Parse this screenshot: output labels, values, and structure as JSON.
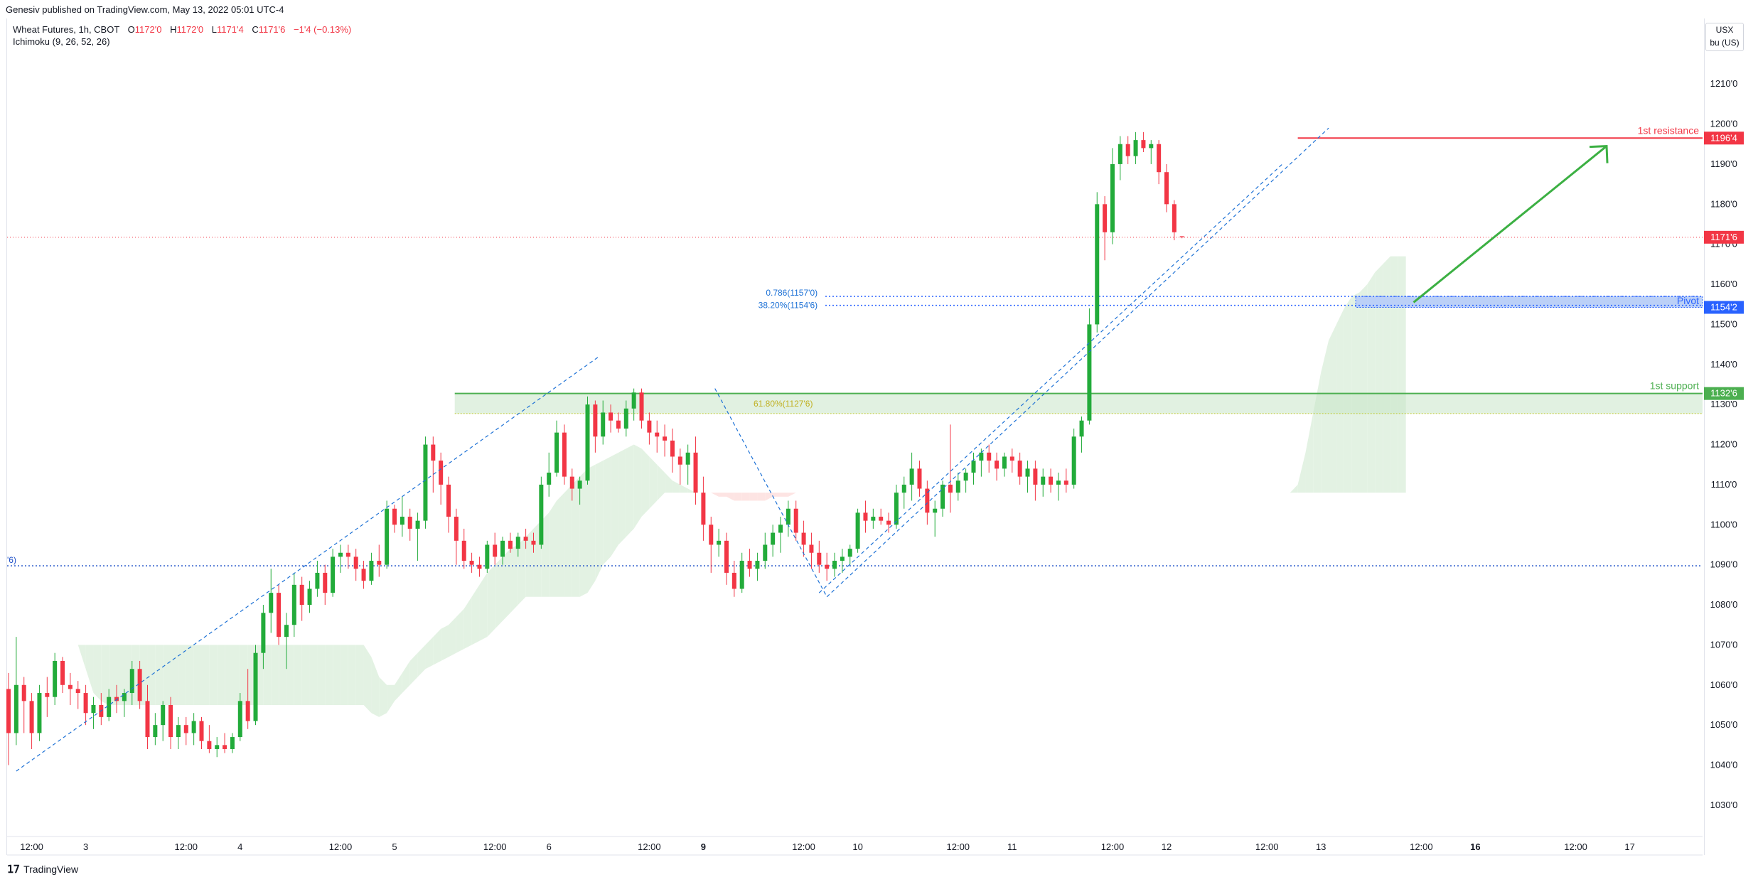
{
  "publisher_line": "Genesiv published on TradingView.com, May 13, 2022 05:01 UTC-4",
  "legend": {
    "symbol": "Wheat Futures, 1h, CBOT",
    "o_label": "O",
    "o_value": "1172'0",
    "h_label": "H",
    "h_value": "1172'0",
    "l_label": "L",
    "l_value": "1171'4",
    "c_label": "C",
    "c_value": "1171'6",
    "change": "−1'4 (−0.13%)",
    "indicator": "Ichimoku (9, 26, 52, 26)"
  },
  "currency": {
    "line1": "USX",
    "line2": "bu (US)"
  },
  "branding": "TradingView",
  "colors": {
    "up": "#22ab3a",
    "down": "#f23645",
    "resistance": "#f23645",
    "support": "#4caf50",
    "pivot": "#2962ff",
    "fib": "#1e72d6",
    "cloud_bull": "#e3f2e3",
    "cloud_bear": "#fde4e3"
  },
  "chart_data": {
    "type": "candlestick",
    "timeframe": "1h",
    "ylim": [
      1022,
      1226
    ],
    "y_ticks": [
      "1030'0",
      "1040'0",
      "1050'0",
      "1060'0",
      "1070'0",
      "1080'0",
      "1090'0",
      "1100'0",
      "1110'0",
      "1120'0",
      "1130'0",
      "1140'0",
      "1150'0",
      "1160'0",
      "1170'0",
      "1180'0",
      "1190'0",
      "1200'0",
      "1210'0"
    ],
    "y_tick_values": [
      1030,
      1040,
      1050,
      1060,
      1070,
      1080,
      1090,
      1100,
      1110,
      1120,
      1130,
      1140,
      1150,
      1160,
      1170,
      1180,
      1190,
      1200,
      1210
    ],
    "x_labels": [
      {
        "t": "12:00",
        "i": 3,
        "bold": false
      },
      {
        "t": "3",
        "i": 10,
        "bold": false
      },
      {
        "t": "12:00",
        "i": 23,
        "bold": false
      },
      {
        "t": "4",
        "i": 30,
        "bold": false
      },
      {
        "t": "12:00",
        "i": 43,
        "bold": false
      },
      {
        "t": "5",
        "i": 50,
        "bold": false
      },
      {
        "t": "12:00",
        "i": 63,
        "bold": false
      },
      {
        "t": "6",
        "i": 70,
        "bold": false
      },
      {
        "t": "12:00",
        "i": 83,
        "bold": false
      },
      {
        "t": "9",
        "i": 90,
        "bold": true
      },
      {
        "t": "12:00",
        "i": 103,
        "bold": false
      },
      {
        "t": "10",
        "i": 110,
        "bold": false
      },
      {
        "t": "12:00",
        "i": 123,
        "bold": false
      },
      {
        "t": "11",
        "i": 130,
        "bold": false
      },
      {
        "t": "12:00",
        "i": 143,
        "bold": false
      },
      {
        "t": "12",
        "i": 150,
        "bold": false
      },
      {
        "t": "12:00",
        "i": 163,
        "bold": false
      },
      {
        "t": "13",
        "i": 170,
        "bold": false
      },
      {
        "t": "12:00",
        "i": 183,
        "bold": false
      },
      {
        "t": "16",
        "i": 190,
        "bold": true
      },
      {
        "t": "12:00",
        "i": 203,
        "bold": false
      },
      {
        "t": "17",
        "i": 210,
        "bold": false
      }
    ],
    "candles": [
      [
        1059,
        1063,
        1040,
        1048
      ],
      [
        1048,
        1072,
        1045,
        1060
      ],
      [
        1060,
        1062,
        1048,
        1056
      ],
      [
        1056,
        1058,
        1044,
        1048
      ],
      [
        1048,
        1060,
        1046,
        1058
      ],
      [
        1058,
        1062,
        1052,
        1057
      ],
      [
        1057,
        1068,
        1055,
        1066
      ],
      [
        1066,
        1067,
        1058,
        1060
      ],
      [
        1060,
        1063,
        1055,
        1059
      ],
      [
        1059,
        1061,
        1054,
        1058
      ],
      [
        1058,
        1060,
        1050,
        1053
      ],
      [
        1053,
        1057,
        1049,
        1055
      ],
      [
        1055,
        1058,
        1050,
        1052
      ],
      [
        1052,
        1059,
        1051,
        1057
      ],
      [
        1057,
        1060,
        1053,
        1056
      ],
      [
        1056,
        1059,
        1052,
        1058
      ],
      [
        1058,
        1066,
        1055,
        1064
      ],
      [
        1064,
        1066,
        1054,
        1056
      ],
      [
        1056,
        1060,
        1044,
        1047
      ],
      [
        1047,
        1053,
        1045,
        1050
      ],
      [
        1050,
        1056,
        1046,
        1055
      ],
      [
        1055,
        1057,
        1044,
        1047
      ],
      [
        1047,
        1052,
        1044,
        1050
      ],
      [
        1050,
        1052,
        1045,
        1048
      ],
      [
        1048,
        1053,
        1045,
        1051
      ],
      [
        1051,
        1052,
        1044,
        1046
      ],
      [
        1046,
        1050,
        1043,
        1044
      ],
      [
        1044,
        1047,
        1042,
        1045
      ],
      [
        1045,
        1048,
        1043,
        1044
      ],
      [
        1044,
        1048,
        1043,
        1047
      ],
      [
        1047,
        1058,
        1046,
        1056
      ],
      [
        1056,
        1064,
        1049,
        1051
      ],
      [
        1051,
        1070,
        1050,
        1068
      ],
      [
        1068,
        1080,
        1064,
        1078
      ],
      [
        1078,
        1089,
        1073,
        1083
      ],
      [
        1083,
        1085,
        1070,
        1072
      ],
      [
        1072,
        1078,
        1064,
        1075
      ],
      [
        1075,
        1088,
        1072,
        1085
      ],
      [
        1085,
        1087,
        1076,
        1080
      ],
      [
        1080,
        1086,
        1078,
        1084
      ],
      [
        1084,
        1091,
        1082,
        1088
      ],
      [
        1088,
        1090,
        1080,
        1083
      ],
      [
        1083,
        1094,
        1082,
        1092
      ],
      [
        1092,
        1095,
        1088,
        1093
      ],
      [
        1093,
        1095,
        1089,
        1092
      ],
      [
        1092,
        1094,
        1086,
        1089
      ],
      [
        1089,
        1091,
        1084,
        1086
      ],
      [
        1086,
        1093,
        1085,
        1091
      ],
      [
        1091,
        1095,
        1087,
        1090
      ],
      [
        1090,
        1106,
        1089,
        1104
      ],
      [
        1104,
        1105,
        1098,
        1100
      ],
      [
        1100,
        1107,
        1097,
        1102
      ],
      [
        1102,
        1104,
        1096,
        1099
      ],
      [
        1099,
        1103,
        1091,
        1101
      ],
      [
        1101,
        1122,
        1099,
        1120
      ],
      [
        1120,
        1122,
        1108,
        1116
      ],
      [
        1116,
        1118,
        1105,
        1110
      ],
      [
        1110,
        1112,
        1098,
        1102
      ],
      [
        1102,
        1104,
        1090,
        1096
      ],
      [
        1096,
        1099,
        1089,
        1091
      ],
      [
        1091,
        1093,
        1088,
        1090
      ],
      [
        1090,
        1092,
        1087,
        1089
      ],
      [
        1089,
        1096,
        1088,
        1095
      ],
      [
        1095,
        1098,
        1090,
        1092
      ],
      [
        1092,
        1097,
        1090,
        1096
      ],
      [
        1096,
        1098,
        1093,
        1094
      ],
      [
        1094,
        1098,
        1092,
        1097
      ],
      [
        1097,
        1099,
        1094,
        1096
      ],
      [
        1096,
        1098,
        1093,
        1095
      ],
      [
        1095,
        1112,
        1094,
        1110
      ],
      [
        1110,
        1118,
        1107,
        1113
      ],
      [
        1113,
        1126,
        1112,
        1123
      ],
      [
        1123,
        1125,
        1110,
        1112
      ],
      [
        1112,
        1114,
        1106,
        1109
      ],
      [
        1109,
        1112,
        1105,
        1111
      ],
      [
        1111,
        1132,
        1110,
        1130
      ],
      [
        1130,
        1131,
        1118,
        1122
      ],
      [
        1122,
        1131,
        1120,
        1128
      ],
      [
        1128,
        1130,
        1123,
        1126
      ],
      [
        1126,
        1128,
        1123,
        1124
      ],
      [
        1124,
        1131,
        1122,
        1129
      ],
      [
        1129,
        1134,
        1126,
        1133
      ],
      [
        1133,
        1134,
        1124,
        1126
      ],
      [
        1126,
        1128,
        1120,
        1123
      ],
      [
        1123,
        1126,
        1118,
        1122
      ],
      [
        1122,
        1125,
        1117,
        1121
      ],
      [
        1121,
        1124,
        1113,
        1117
      ],
      [
        1117,
        1119,
        1110,
        1115
      ],
      [
        1115,
        1120,
        1110,
        1118
      ],
      [
        1118,
        1122,
        1105,
        1108
      ],
      [
        1108,
        1112,
        1096,
        1100
      ],
      [
        1100,
        1102,
        1088,
        1095
      ],
      [
        1095,
        1099,
        1092,
        1096
      ],
      [
        1096,
        1098,
        1085,
        1088
      ],
      [
        1088,
        1091,
        1082,
        1084
      ],
      [
        1084,
        1093,
        1083,
        1091
      ],
      [
        1091,
        1094,
        1087,
        1089
      ],
      [
        1089,
        1093,
        1086,
        1091
      ],
      [
        1091,
        1098,
        1089,
        1095
      ],
      [
        1095,
        1100,
        1092,
        1098
      ],
      [
        1098,
        1102,
        1093,
        1100
      ],
      [
        1100,
        1106,
        1097,
        1104
      ],
      [
        1104,
        1106,
        1096,
        1098
      ],
      [
        1098,
        1101,
        1092,
        1095
      ],
      [
        1095,
        1098,
        1089,
        1093
      ],
      [
        1093,
        1096,
        1088,
        1090
      ],
      [
        1090,
        1093,
        1086,
        1089
      ],
      [
        1089,
        1093,
        1087,
        1091
      ],
      [
        1091,
        1094,
        1088,
        1092
      ],
      [
        1092,
        1095,
        1090,
        1094
      ],
      [
        1094,
        1104,
        1093,
        1103
      ],
      [
        1103,
        1106,
        1098,
        1101
      ],
      [
        1101,
        1104,
        1099,
        1102
      ],
      [
        1102,
        1104,
        1100,
        1101
      ],
      [
        1101,
        1103,
        1098,
        1100
      ],
      [
        1100,
        1110,
        1099,
        1108
      ],
      [
        1108,
        1112,
        1104,
        1110
      ],
      [
        1110,
        1118,
        1106,
        1114
      ],
      [
        1114,
        1116,
        1107,
        1109
      ],
      [
        1109,
        1111,
        1100,
        1103
      ],
      [
        1103,
        1106,
        1097,
        1104
      ],
      [
        1104,
        1111,
        1102,
        1110
      ],
      [
        1110,
        1125,
        1103,
        1108
      ],
      [
        1108,
        1113,
        1106,
        1111
      ],
      [
        1111,
        1114,
        1108,
        1113
      ],
      [
        1113,
        1118,
        1110,
        1116
      ],
      [
        1116,
        1119,
        1112,
        1118
      ],
      [
        1118,
        1120,
        1113,
        1116
      ],
      [
        1116,
        1118,
        1111,
        1114
      ],
      [
        1114,
        1118,
        1112,
        1117
      ],
      [
        1117,
        1119,
        1113,
        1116
      ],
      [
        1116,
        1118,
        1110,
        1112
      ],
      [
        1112,
        1116,
        1108,
        1114
      ],
      [
        1114,
        1116,
        1106,
        1110
      ],
      [
        1110,
        1114,
        1107,
        1112
      ],
      [
        1112,
        1114,
        1108,
        1110
      ],
      [
        1110,
        1113,
        1106,
        1111
      ],
      [
        1111,
        1114,
        1108,
        1110
      ],
      [
        1110,
        1124,
        1109,
        1122
      ],
      [
        1122,
        1127,
        1118,
        1126
      ],
      [
        1126,
        1154,
        1125,
        1150
      ],
      [
        1150,
        1183,
        1148,
        1180
      ],
      [
        1180,
        1182,
        1166,
        1173
      ],
      [
        1173,
        1194,
        1170,
        1190
      ],
      [
        1190,
        1197,
        1186,
        1195
      ],
      [
        1195,
        1197,
        1190,
        1192
      ],
      [
        1192,
        1198,
        1190,
        1196
      ],
      [
        1196,
        1198,
        1193,
        1194
      ],
      [
        1194,
        1196,
        1190,
        1195
      ],
      [
        1195,
        1196,
        1185,
        1188
      ],
      [
        1188,
        1190,
        1178,
        1180
      ],
      [
        1180,
        1181,
        1171,
        1173
      ],
      [
        1172,
        1172,
        1171.5,
        1171.75
      ]
    ],
    "cloud": {
      "x_start": 5,
      "span_a": [
        1088,
        1082,
        1076,
        1071,
        1070,
        1070,
        1070,
        1070,
        1070,
        1070,
        1070,
        1070,
        1070,
        1070,
        1070,
        1070,
        1070,
        1070,
        1070,
        1070,
        1070,
        1070,
        1070,
        1070,
        1070,
        1070,
        1070,
        1070,
        1070,
        1070,
        1070,
        1070,
        1070,
        1070,
        1070,
        1070,
        1070,
        1070,
        1070,
        1070,
        1070,
        1070,
        1067,
        1062,
        1060,
        1060,
        1063,
        1066,
        1068,
        1070,
        1072,
        1074,
        1075,
        1077,
        1079,
        1082,
        1085,
        1088,
        1090,
        1092,
        1094,
        1095,
        1097,
        1099,
        1101,
        1103,
        1106,
        1108,
        1110,
        1112,
        1114,
        1115,
        1116,
        1117,
        1118,
        1119,
        1120,
        1119,
        1117,
        1115,
        1113,
        1111,
        1110,
        1109,
        1108,
        1108,
        1108,
        1107,
        1107,
        1106,
        1106,
        1106,
        1106,
        1106,
        1107,
        1107,
        1107,
        1108,
        1108,
        1108,
        1108,
        1108,
        1108,
        1108,
        1108,
        1108,
        1108,
        1108,
        1108,
        1108,
        1108,
        1108,
        1108,
        1108,
        1108,
        1108,
        1108,
        1108,
        1108,
        1108,
        1108,
        1108,
        1108,
        1108,
        1108,
        1108,
        1108,
        1108,
        1108,
        1108,
        1108,
        1108,
        1108,
        1108,
        1108,
        1108,
        1108,
        1108,
        1108,
        1108,
        1108,
        1108,
        1108,
        1108,
        1108,
        1108,
        1108,
        1108,
        1108,
        1108,
        1108,
        1108,
        1108,
        1108,
        1108,
        1108,
        1108,
        1108,
        1108,
        1108,
        1108,
        1108,
        1110,
        1118,
        1128,
        1138,
        1146,
        1150,
        1154,
        1157,
        1158,
        1160,
        1163,
        1165,
        1167,
        1167,
        1167
      ],
      "span_b": [
        1088,
        1082,
        1076,
        1071,
        1070,
        1064,
        1058,
        1056,
        1055,
        1055,
        1055,
        1055,
        1055,
        1055,
        1055,
        1055,
        1055,
        1055,
        1055,
        1055,
        1055,
        1055,
        1055,
        1055,
        1055,
        1055,
        1055,
        1055,
        1055,
        1055,
        1055,
        1055,
        1055,
        1055,
        1055,
        1055,
        1055,
        1055,
        1055,
        1055,
        1055,
        1055,
        1053,
        1052,
        1053,
        1056,
        1058,
        1060,
        1062,
        1064,
        1065,
        1066,
        1067,
        1068,
        1069,
        1070,
        1071,
        1072,
        1074,
        1076,
        1078,
        1080,
        1082,
        1082,
        1082,
        1082,
        1082,
        1082,
        1082,
        1082,
        1083,
        1086,
        1090,
        1092,
        1095,
        1097,
        1099,
        1102,
        1104,
        1106,
        1108,
        1108,
        1108,
        1108,
        1108,
        1108,
        1108,
        1108,
        1108,
        1108,
        1108,
        1108,
        1108,
        1108,
        1108,
        1108,
        1108,
        1108,
        1108,
        1108,
        1108,
        1108,
        1108,
        1108,
        1108,
        1108,
        1108,
        1108,
        1108,
        1108,
        1108,
        1108,
        1108,
        1108,
        1108,
        1108,
        1108,
        1108,
        1108,
        1108,
        1108,
        1108,
        1108,
        1108,
        1108,
        1108,
        1108,
        1108,
        1108,
        1108,
        1108,
        1108,
        1108,
        1108,
        1108,
        1108,
        1108,
        1108,
        1108,
        1108,
        1108,
        1108,
        1108,
        1108,
        1108,
        1108,
        1108,
        1108,
        1108,
        1108,
        1108,
        1108,
        1108,
        1108,
        1108,
        1108,
        1108,
        1108,
        1108,
        1108,
        1108,
        1108,
        1108,
        1108,
        1108,
        1108,
        1108,
        1108,
        1108,
        1108,
        1108,
        1108,
        1108,
        1108,
        1108,
        1108,
        1108
      ]
    },
    "levels": {
      "resistance": {
        "label": "1st resistance",
        "value": 1196.5,
        "tag": "1196'4"
      },
      "last_price": {
        "value": 1171.75,
        "tag": "1171'6"
      },
      "pivot": {
        "label": "Pivot",
        "value": 1154.25,
        "tag": "1154'2"
      },
      "support": {
        "label": "1st support",
        "value": 1132.75,
        "tag": "1132'6"
      },
      "support_low": {
        "label": "61.80%(1127'6)",
        "value": 1127.75
      },
      "fib_786": {
        "label": "0.786(1157'0)",
        "value": 1157
      },
      "fib_382": {
        "label": "38.20%(1154'6)",
        "value": 1154.75
      },
      "blue_dotted": {
        "label": "'6)",
        "value": 1089.75
      }
    }
  }
}
